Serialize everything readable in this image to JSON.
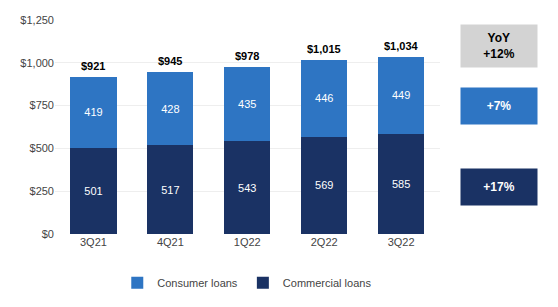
{
  "chart_data": {
    "type": "bar",
    "stacked": true,
    "categories": [
      "3Q21",
      "4Q21",
      "1Q22",
      "2Q22",
      "3Q22"
    ],
    "series": [
      {
        "name": "Commercial loans",
        "color": "#1a3264",
        "values": [
          501,
          517,
          543,
          569,
          585
        ]
      },
      {
        "name": "Consumer loans",
        "color": "#2e75c3",
        "values": [
          419,
          428,
          435,
          446,
          449
        ]
      }
    ],
    "data_labels": true,
    "annotations": [
      {
        "text": "$921",
        "x": "3Q21"
      },
      {
        "text": "$945",
        "x": "4Q21"
      },
      {
        "text": "$978",
        "x": "1Q22"
      },
      {
        "text": "$1,015",
        "x": "2Q22"
      },
      {
        "text": "$1,034",
        "x": "3Q22"
      },
      {
        "text": "YoY\n+12%",
        "color": "#d3d3d3"
      },
      {
        "text": "+7%",
        "color": "#2e75c3"
      },
      {
        "text": "+17%",
        "color": "#1a3264"
      }
    ],
    "ylim": [
      0,
      1250
    ],
    "yticks": [
      {
        "value": 0,
        "label": "$0"
      },
      {
        "value": 250,
        "label": "$250"
      },
      {
        "value": 500,
        "label": "$500"
      },
      {
        "value": 750,
        "label": "$750"
      },
      {
        "value": 1000,
        "label": "$1,000"
      },
      {
        "value": 1250,
        "label": "$1,250"
      }
    ],
    "grid": true,
    "legend": "bottom"
  }
}
